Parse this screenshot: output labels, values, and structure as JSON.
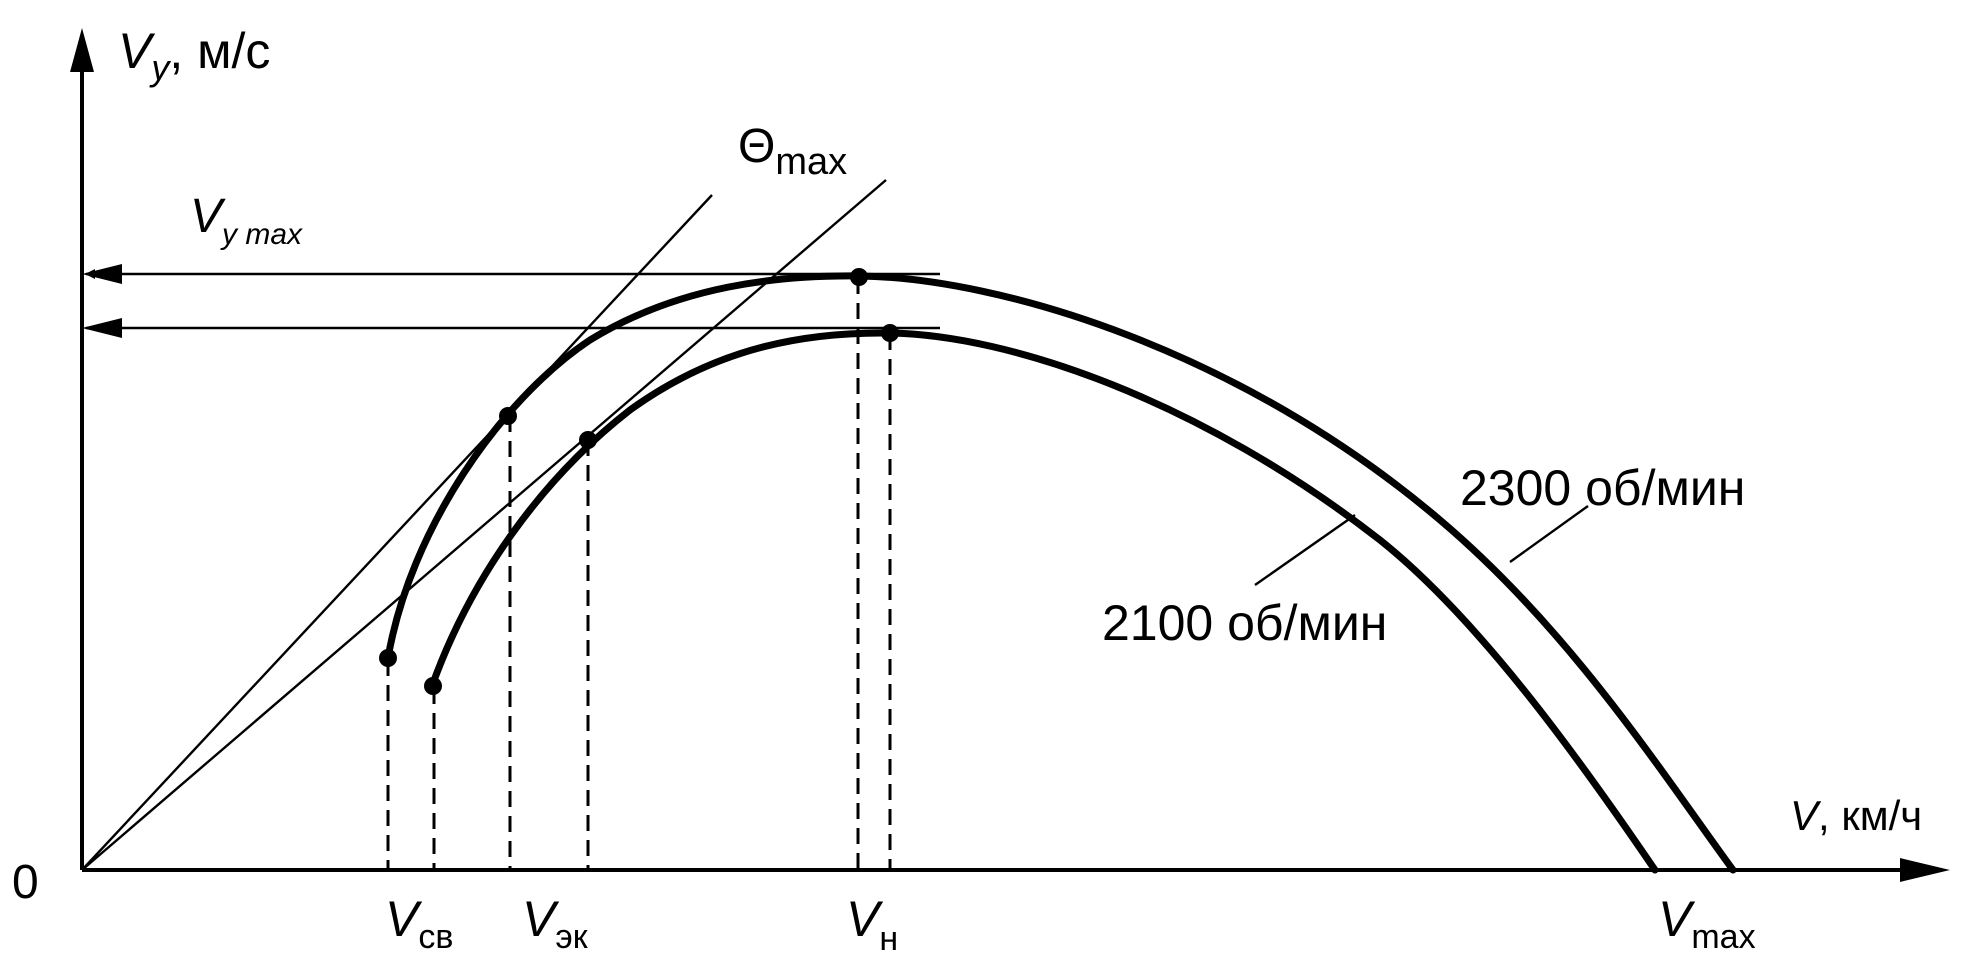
{
  "axes": {
    "y_symbol": "V",
    "y_subscript": "y",
    "y_unit": ", м/с",
    "x_symbol": "V",
    "x_unit": ", км/ч",
    "origin": "0"
  },
  "labels": {
    "theta_symbol": "Θ",
    "theta_subscript": "max",
    "vymax_symbol": "V",
    "vymax_subscript": "y max",
    "rpm_2300": "2300 об/мин",
    "rpm_2100": "2100 об/мин"
  },
  "x_marks": [
    {
      "symbol": "V",
      "subscript": "св"
    },
    {
      "symbol": "V",
      "subscript": "эк"
    },
    {
      "symbol": "V",
      "subscript": "н"
    },
    {
      "symbol": "V",
      "subscript": "max"
    }
  ],
  "curves": [
    {
      "name": "2300 об/мин"
    },
    {
      "name": "2100 об/мин"
    }
  ],
  "colors": {
    "ink": "#000000",
    "background": "#ffffff"
  }
}
